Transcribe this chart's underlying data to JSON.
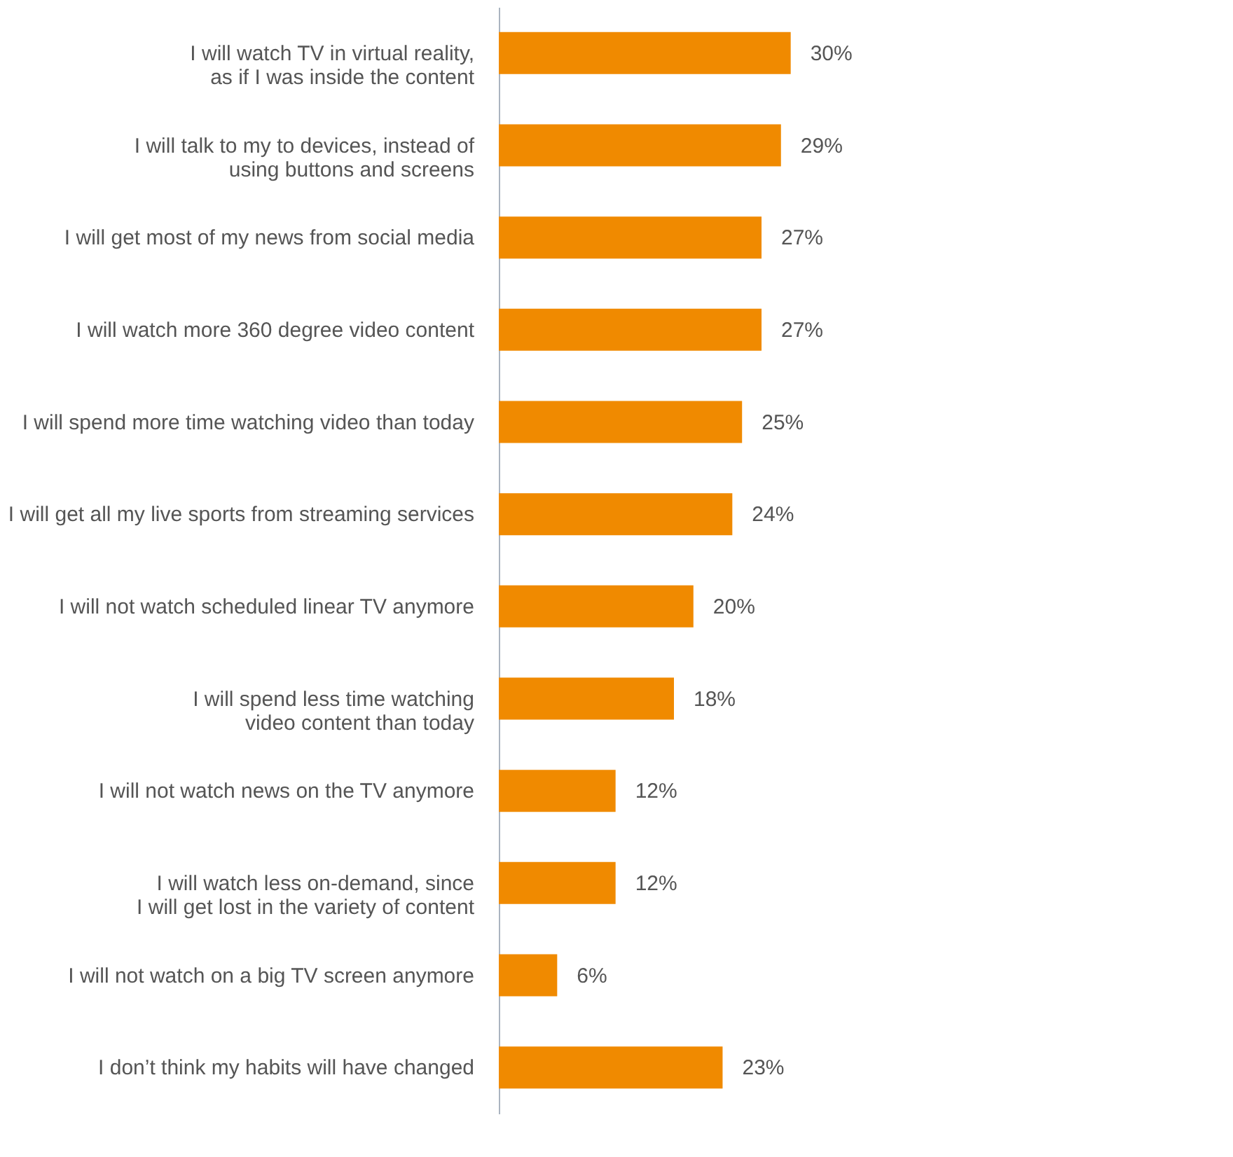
{
  "chart_data": {
    "type": "bar",
    "orientation": "horizontal",
    "categories": [
      "I will watch TV in virtual reality,\nas if I was inside the content",
      "I will talk to my to devices, instead of\nusing buttons and screens",
      "I will get most of my news from social media",
      "I will watch more 360 degree video content",
      "I will spend more time watching video than today",
      "I will get all my live sports from streaming services",
      "I will not watch scheduled linear TV anymore",
      "I will spend less time watching\nvideo content than today",
      "I will not watch news on the TV anymore",
      "I will watch less on-demand, since\nI will get lost in the variety of content",
      "I will not watch on a big TV screen anymore",
      "I don’t think my habits will have changed"
    ],
    "values": [
      30,
      29,
      27,
      27,
      25,
      24,
      20,
      18,
      12,
      12,
      6,
      23
    ],
    "value_labels": [
      "30%",
      "29%",
      "27%",
      "27%",
      "25%",
      "24%",
      "20%",
      "18%",
      "12%",
      "12%",
      "6%",
      "23%"
    ],
    "color": "#f08a00",
    "grid": false
  }
}
